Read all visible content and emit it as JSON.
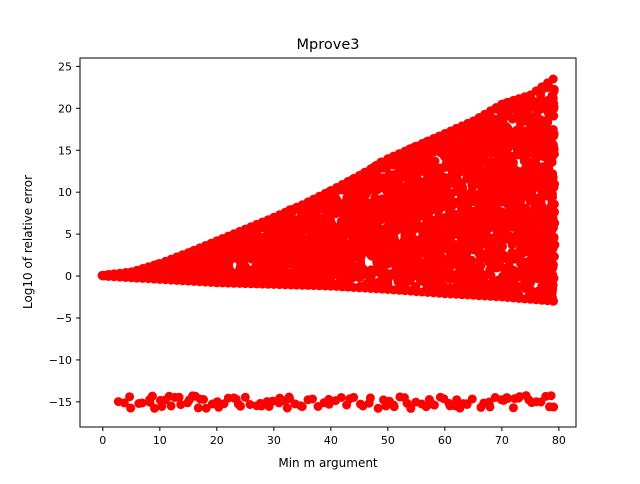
{
  "chart_data": {
    "type": "scatter",
    "title": "Mprove3",
    "xlabel": "Min m argument",
    "ylabel": "Log10 of relative error",
    "xlim": [
      -4,
      83
    ],
    "ylim": [
      -18,
      26
    ],
    "x_ticks": [
      0,
      10,
      20,
      30,
      40,
      50,
      60,
      70,
      80
    ],
    "y_ticks": [
      -15,
      -10,
      -5,
      0,
      5,
      10,
      15,
      20,
      25
    ],
    "x_tick_labels": [
      "0",
      "10",
      "20",
      "30",
      "40",
      "50",
      "60",
      "70",
      "80"
    ],
    "y_tick_labels": [
      "−15",
      "−10",
      "−5",
      "0",
      "5",
      "10",
      "15",
      "20",
      "25"
    ],
    "grid": false,
    "legend": "none",
    "marker": "circle",
    "color": "#ff0000",
    "x_range": [
      0,
      79
    ],
    "upper_envelope": [
      [
        0,
        0.1
      ],
      [
        5,
        0.5
      ],
      [
        10,
        1.5
      ],
      [
        15,
        2.8
      ],
      [
        20,
        4.2
      ],
      [
        25,
        5.6
      ],
      [
        30,
        7.0
      ],
      [
        35,
        8.5
      ],
      [
        40,
        10.2
      ],
      [
        45,
        12.0
      ],
      [
        50,
        14.0
      ],
      [
        55,
        15.5
      ],
      [
        60,
        17.0
      ],
      [
        65,
        18.5
      ],
      [
        70,
        20.5
      ],
      [
        75,
        21.6
      ],
      [
        79,
        23.5
      ]
    ],
    "lower_band": [
      [
        0,
        0.0
      ],
      [
        5,
        -0.2
      ],
      [
        10,
        -0.4
      ],
      [
        20,
        -0.8
      ],
      [
        30,
        -1.0
      ],
      [
        40,
        -1.2
      ],
      [
        50,
        -1.6
      ],
      [
        60,
        -2.1
      ],
      [
        70,
        -2.5
      ],
      [
        79,
        -3.0
      ]
    ],
    "low_cluster": {
      "x_range": [
        3,
        79
      ],
      "y_center": -15.0,
      "y_spread": 0.8
    }
  }
}
